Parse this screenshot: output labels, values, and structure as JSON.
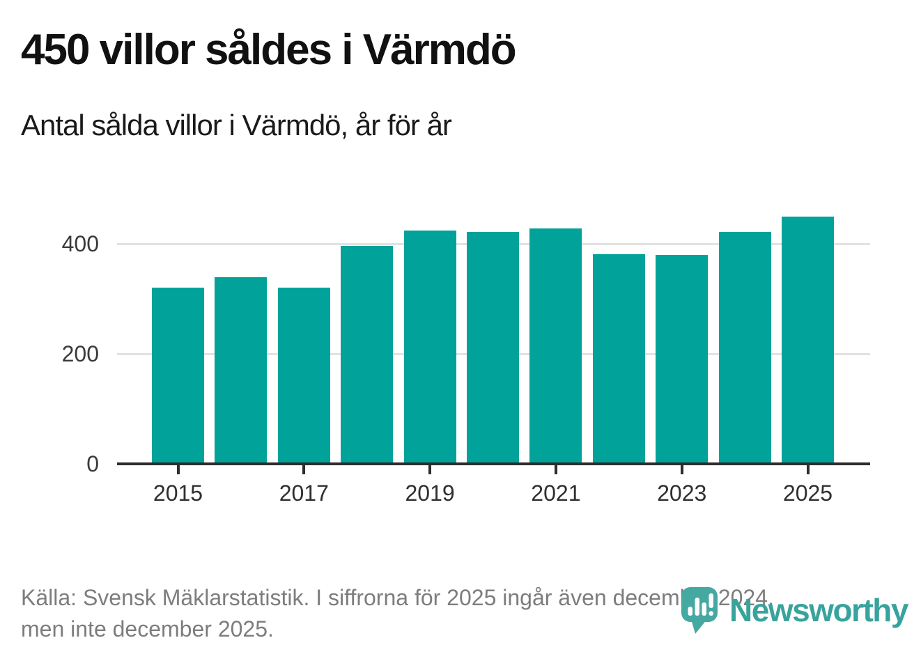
{
  "header": {
    "title": "450 villor såldes i Värmdö",
    "subtitle": "Antal sålda villor i Värmdö, år för år"
  },
  "chart_data": {
    "type": "bar",
    "title": "450 villor såldes i Värmdö",
    "subtitle": "Antal sålda villor i Värmdö, år för år",
    "series_name": "Antal sålda villor",
    "categories": [
      "2015",
      "2016",
      "2017",
      "2018",
      "2019",
      "2020",
      "2021",
      "2022",
      "2023",
      "2024",
      "2025"
    ],
    "values": [
      320,
      339,
      320,
      396,
      424,
      422,
      428,
      381,
      380,
      422,
      450
    ],
    "yticks": [
      0,
      200,
      400
    ],
    "ylim": [
      0,
      470
    ],
    "xtick_labels": [
      "2015",
      "2017",
      "2019",
      "2021",
      "2023",
      "2025"
    ],
    "grid": "horizontal",
    "legend": "none",
    "bar_color": "#00A29A"
  },
  "footer": {
    "source_line1": "Källa: Svensk Mäklarstatistik. I siffrorna för 2025 ingår även december 2024,",
    "source_line2": "men inte december 2025."
  },
  "logo": {
    "brand": "Newsworthy",
    "icon": "newsworthy-bubble-chart-icon",
    "color": "#38A39C",
    "icon_color": "#45A8A1"
  },
  "colors": {
    "bar": "#00A29A",
    "axis": "#2d2d2d",
    "gridline": "#e2e2e2",
    "title_text": "#111111",
    "muted_text": "#7d7d7d"
  }
}
